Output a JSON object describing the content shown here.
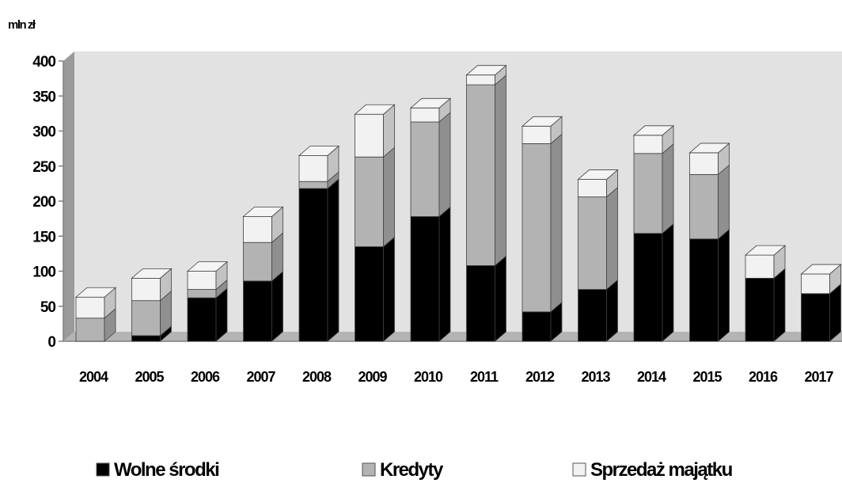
{
  "chart_data": {
    "type": "bar",
    "stacked": true,
    "three_d": true,
    "unit_label": "mln zł",
    "categories": [
      "2004",
      "2005",
      "2006",
      "2007",
      "2008",
      "2009",
      "2010",
      "2011",
      "2012",
      "2013",
      "2014",
      "2015",
      "2016",
      "2017"
    ],
    "series": [
      {
        "name": "Wolne środki",
        "color": "#000000",
        "values": [
          0,
          8,
          62,
          86,
          218,
          135,
          178,
          108,
          42,
          74,
          154,
          146,
          90,
          68
        ]
      },
      {
        "name": "Kredyty",
        "color": "#b3b3b3",
        "values": [
          33,
          50,
          12,
          55,
          10,
          128,
          135,
          258,
          240,
          132,
          114,
          92,
          0,
          0
        ]
      },
      {
        "name": "Sprzedaż majątku",
        "color": "#f2f2f2",
        "values": [
          30,
          32,
          26,
          37,
          37,
          61,
          20,
          14,
          25,
          25,
          26,
          31,
          33,
          28
        ]
      }
    ],
    "yticks": [
      0,
      50,
      100,
      150,
      200,
      250,
      300,
      350,
      400
    ],
    "ylim": [
      0,
      400
    ],
    "grid": false,
    "legend_position": "bottom",
    "background_color": "#e2e2e2"
  }
}
